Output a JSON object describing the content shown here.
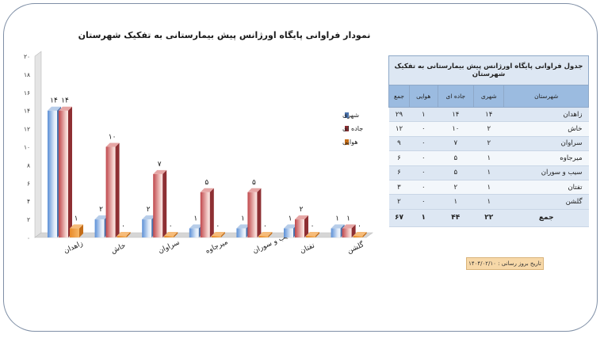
{
  "chart_data": {
    "type": "bar",
    "title": "نمودار فراوانی پایگاه اورژانس پیش بیمارستانی  به تفکیک شهرستان",
    "categories": [
      "زاهدان",
      "خاش",
      "سراوان",
      "میرجاوه",
      "سیب و سوران",
      "تفتان",
      "گلشن"
    ],
    "series": [
      {
        "name": "شهری",
        "values": [
          14,
          2,
          2,
          1,
          1,
          1,
          1
        ],
        "labels": [
          "۱۴",
          "۲",
          "۲",
          "۱",
          "۱",
          "۱",
          "۱"
        ]
      },
      {
        "name": "جاده ای",
        "values": [
          14,
          10,
          7,
          5,
          5,
          2,
          1
        ],
        "labels": [
          "۱۴",
          "۱۰",
          "۷",
          "۵",
          "۵",
          "۲",
          "۱"
        ]
      },
      {
        "name": "هوایی",
        "values": [
          1,
          0,
          0,
          0,
          0,
          0,
          0
        ],
        "labels": [
          "۱",
          "۰",
          "۰",
          "۰",
          "۰",
          "۰",
          "۰"
        ]
      }
    ],
    "ylim": [
      0,
      20
    ],
    "yticks": [
      0,
      2,
      4,
      6,
      8,
      10,
      12,
      14,
      16,
      18,
      20
    ],
    "ytick_labels": [
      "۰",
      "۲",
      "۴",
      "۶",
      "۸",
      "۱۰",
      "۱۲",
      "۱۴",
      "۱۶",
      "۱۸",
      "۲۰"
    ],
    "legend": "right",
    "grid": false,
    "colors": {
      "urban": "#5b8fd6",
      "road": "#c0474b",
      "air": "#f0902a"
    }
  },
  "table": {
    "title": "جدول فراوانی پایگاه اورژانس پیش بیمارستانی به تفکیک شهرستان",
    "headers": [
      "شهرستان",
      "شهری",
      "جاده ای",
      "هوایی",
      "جمع"
    ],
    "rows": [
      [
        "زاهدان",
        "۱۴",
        "۱۴",
        "۱",
        "۲۹"
      ],
      [
        "خاش",
        "۲",
        "۱۰",
        "۰",
        "۱۲"
      ],
      [
        "سراوان",
        "۲",
        "۷",
        "۰",
        "۹"
      ],
      [
        "میرجاوه",
        "۱",
        "۵",
        "۰",
        "۶"
      ],
      [
        "سیب و سوران",
        "۱",
        "۵",
        "۰",
        "۶"
      ],
      [
        "تفتان",
        "۱",
        "۲",
        "۰",
        "۳"
      ],
      [
        "گلشن",
        "۱",
        "۱",
        "۰",
        "۲"
      ]
    ],
    "total": [
      "جمع",
      "۲۲",
      "۴۴",
      "۱",
      "۶۷"
    ]
  },
  "date_note": "تاریخ بروز رسانی : ۱۴۰۴/۰۲/۱۰"
}
